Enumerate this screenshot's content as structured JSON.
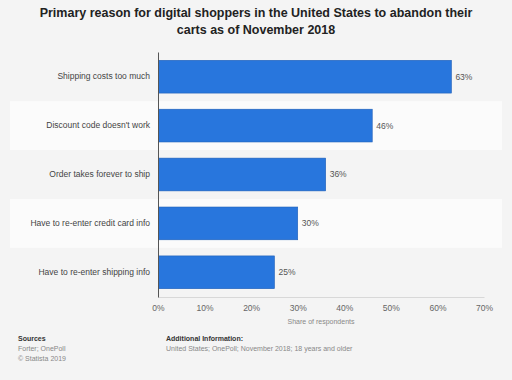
{
  "chart_data": {
    "type": "bar",
    "title": "Primary reason for digital shoppers in the United States to abandon their carts as of November 2018",
    "orientation": "horizontal",
    "categories": [
      "Shipping costs too much",
      "Discount code doesn't work",
      "Order takes forever to ship",
      "Have to re-enter credit card info",
      "Have to re-enter shipping info"
    ],
    "values": [
      63,
      46,
      36,
      30,
      25
    ],
    "value_labels": [
      "63%",
      "46%",
      "36%",
      "30%",
      "25%"
    ],
    "data_labels": true,
    "color": "#2876dd",
    "xlabel": "Share of respondents",
    "xlim": [
      0,
      70
    ],
    "xticks": [
      {
        "value": 0,
        "label": "0%"
      },
      {
        "value": 10,
        "label": "10%"
      },
      {
        "value": 20,
        "label": "20%"
      },
      {
        "value": 30,
        "label": "30%"
      },
      {
        "value": 40,
        "label": "40%"
      },
      {
        "value": 50,
        "label": "50%"
      },
      {
        "value": 60,
        "label": "60%"
      },
      {
        "value": 70,
        "label": "70%"
      }
    ],
    "grid": false,
    "annotations": [
      "Sources",
      "Forter; OnePoll",
      "© Statista 2019",
      "Additional Information:",
      "United States; OnePoll; November 2018; 18 years and older"
    ]
  }
}
